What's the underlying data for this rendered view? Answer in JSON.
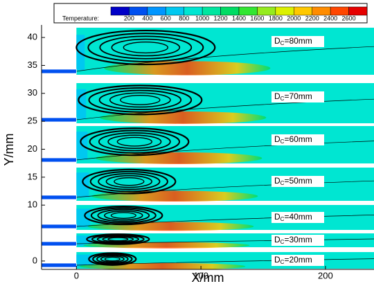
{
  "chart_data": {
    "type": "contour",
    "x_label": "X/mm",
    "y_label": "Y/mm",
    "xlim": [
      -28,
      239
    ],
    "xticks": [
      0,
      100,
      200
    ],
    "ylim": [
      -1.5,
      41.5
    ],
    "yticks": [
      40,
      35,
      30,
      25,
      20,
      15,
      10,
      0
    ],
    "colorbar": {
      "title": "Temperature:",
      "levels": [
        200,
        400,
        600,
        800,
        1000,
        1200,
        1400,
        1600,
        1800,
        2000,
        2200,
        2400,
        2600
      ],
      "colors": [
        "#0000c8",
        "#0050f0",
        "#0096ff",
        "#00c8f0",
        "#00e6d2",
        "#00e6a0",
        "#00dc64",
        "#32e632",
        "#96eb1e",
        "#dcf000",
        "#ffc800",
        "#ff8c00",
        "#ff4600",
        "#e60000"
      ]
    },
    "panels": [
      {
        "symbol": "D",
        "subscript": "C",
        "text": "=80mm"
      },
      {
        "symbol": "D",
        "subscript": "C",
        "text": "=70mm"
      },
      {
        "symbol": "D",
        "subscript": "C",
        "text": "=60mm"
      },
      {
        "symbol": "D",
        "subscript": "C",
        "text": "=50mm"
      },
      {
        "symbol": "D",
        "subscript": "C",
        "text": "=40mm"
      },
      {
        "symbol": "D",
        "subscript": "C",
        "text": "=30mm"
      },
      {
        "symbol": "D",
        "subscript": "C",
        "text": "=20mm"
      }
    ]
  }
}
